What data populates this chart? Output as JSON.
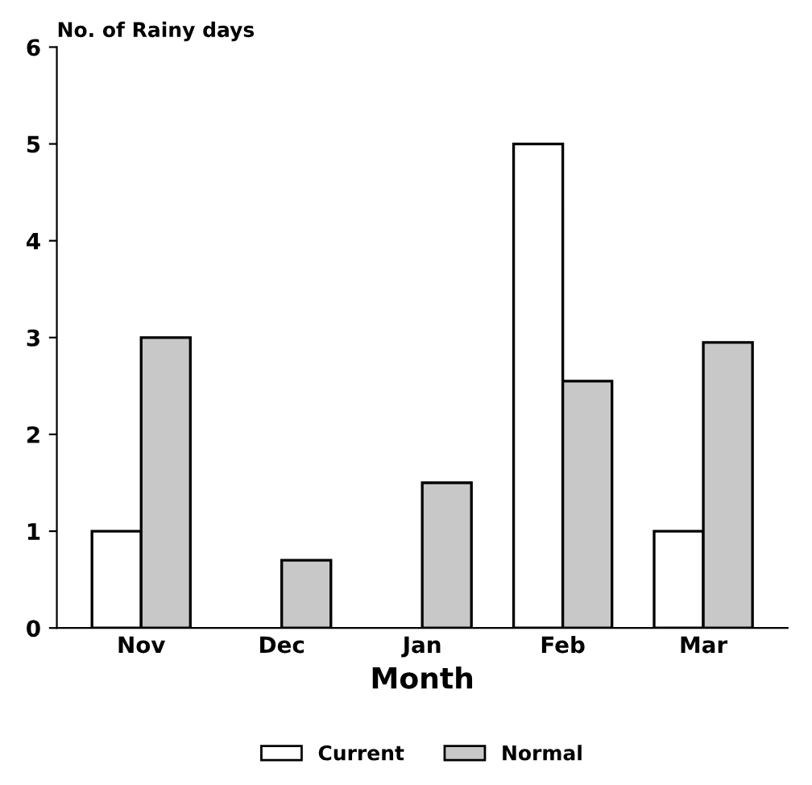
{
  "chart_data": {
    "type": "bar",
    "ylabel": "No. of Rainy days",
    "xlabel": "Month",
    "categories": [
      "Nov",
      "Dec",
      "Jan",
      "Feb",
      "Mar"
    ],
    "series": [
      {
        "name": "Current",
        "color": "#ffffff",
        "values": [
          1,
          null,
          null,
          5,
          1
        ]
      },
      {
        "name": "Normal",
        "color": "#c8c8c8",
        "values": [
          3,
          0.7,
          1.5,
          2.55,
          2.95
        ]
      }
    ],
    "ylim": [
      0,
      6
    ],
    "yticks": [
      0,
      1,
      2,
      3,
      4,
      5,
      6
    ],
    "grid": false,
    "legend": "bottom"
  }
}
